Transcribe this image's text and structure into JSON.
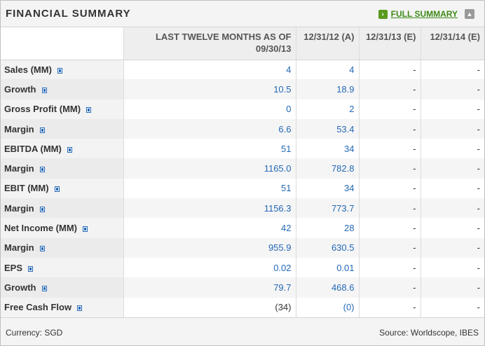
{
  "header": {
    "title": "FINANCIAL SUMMARY",
    "full_summary_label": "FULL SUMMARY"
  },
  "columns": [
    "",
    "LAST TWELVE MONTHS AS OF 09/30/13",
    "12/31/12 (A)",
    "12/31/13 (E)",
    "12/31/14 (E)"
  ],
  "rows": [
    {
      "label": "Sales (MM)",
      "values": [
        "4",
        "4",
        "-",
        "-"
      ]
    },
    {
      "label": "Growth",
      "values": [
        "10.5",
        "18.9",
        "-",
        "-"
      ]
    },
    {
      "label": "Gross Profit (MM)",
      "values": [
        "0",
        "2",
        "-",
        "-"
      ]
    },
    {
      "label": "Margin",
      "values": [
        "6.6",
        "53.4",
        "-",
        "-"
      ]
    },
    {
      "label": "EBITDA (MM)",
      "values": [
        "51",
        "34",
        "-",
        "-"
      ]
    },
    {
      "label": "Margin",
      "values": [
        "1165.0",
        "782.8",
        "-",
        "-"
      ]
    },
    {
      "label": "EBIT (MM)",
      "values": [
        "51",
        "34",
        "-",
        "-"
      ]
    },
    {
      "label": "Margin",
      "values": [
        "1156.3",
        "773.7",
        "-",
        "-"
      ]
    },
    {
      "label": "Net Income (MM)",
      "values": [
        "42",
        "28",
        "-",
        "-"
      ]
    },
    {
      "label": "Margin",
      "values": [
        "955.9",
        "630.5",
        "-",
        "-"
      ]
    },
    {
      "label": "EPS",
      "values": [
        "0.02",
        "0.01",
        "-",
        "-"
      ]
    },
    {
      "label": "Growth",
      "values": [
        "79.7",
        "468.6",
        "-",
        "-"
      ]
    },
    {
      "label": "Free Cash Flow",
      "values": [
        "(34)",
        "(0)",
        "-",
        "-"
      ]
    }
  ],
  "footer": {
    "currency": "Currency: SGD",
    "source": "Source: Worldscope, IBES"
  },
  "colors": {
    "link_blue": "#2468b5",
    "accent_green": "#5a9a1e"
  },
  "icons": [
    "arrow-right-icon",
    "collapse-icon",
    "info-icon"
  ]
}
